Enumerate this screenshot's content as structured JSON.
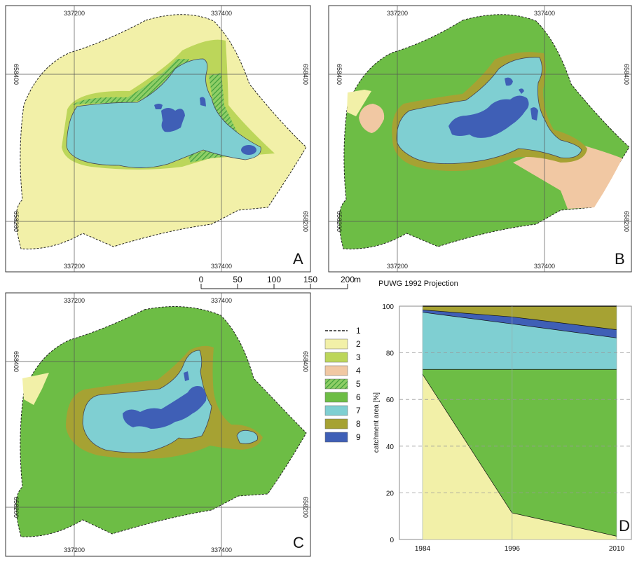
{
  "colors": {
    "c1": "#222222",
    "c2": "#f2f0a8",
    "c3": "#bcd65a",
    "c4": "#f1c8a3",
    "c5": "#52ac47",
    "c6": "#6dbd45",
    "c7": "#7fcfd2",
    "c8": "#a6a233",
    "c9": "#3f5fb6"
  },
  "panels": {
    "A": {
      "label": "A",
      "x_ticks": [
        "337200",
        "337400"
      ],
      "y_ticks": [
        "658400",
        "658200"
      ]
    },
    "B": {
      "label": "B",
      "x_ticks": [
        "337200",
        "337400"
      ],
      "y_ticks": [
        "658400",
        "658200"
      ]
    },
    "C": {
      "label": "C",
      "x_ticks": [
        "337200",
        "337400"
      ],
      "y_ticks": [
        "658400",
        "658200"
      ]
    }
  },
  "scale_bar": {
    "labels": [
      "0",
      "50",
      "100",
      "150",
      "200"
    ],
    "unit": "m",
    "projection": "PUWG 1992 Projection"
  },
  "legend": [
    {
      "label": "1",
      "type": "dashed-line",
      "color_key": "c1"
    },
    {
      "label": "2",
      "type": "fill",
      "color_key": "c2"
    },
    {
      "label": "3",
      "type": "fill",
      "color_key": "c3"
    },
    {
      "label": "4",
      "type": "fill",
      "color_key": "c4"
    },
    {
      "label": "5",
      "type": "hatched",
      "color_key": "c5"
    },
    {
      "label": "6",
      "type": "fill",
      "color_key": "c6"
    },
    {
      "label": "7",
      "type": "fill",
      "color_key": "c7"
    },
    {
      "label": "8",
      "type": "fill",
      "color_key": "c8"
    },
    {
      "label": "9",
      "type": "fill",
      "color_key": "c9"
    }
  ],
  "chart_data": {
    "type": "area",
    "panel_label": "D",
    "x": [
      1984,
      1996,
      2010
    ],
    "ylabel": "catchment area [%]",
    "ylim": [
      0,
      100
    ],
    "yticks": [
      0,
      20,
      40,
      60,
      80,
      100
    ],
    "grid": "dashed horizontal",
    "stacked_boundaries": [
      {
        "color_key": "c2",
        "top": [
          71,
          11.5,
          1.5
        ]
      },
      {
        "color_key": "c6",
        "top": [
          73,
          73,
          73
        ]
      },
      {
        "color_key": "c7",
        "top": [
          97.5,
          92.5,
          86.5
        ]
      },
      {
        "color_key": "c9",
        "top": [
          98.5,
          95.5,
          90
        ]
      },
      {
        "color_key": "c8",
        "top": [
          100,
          100,
          100
        ]
      }
    ]
  }
}
